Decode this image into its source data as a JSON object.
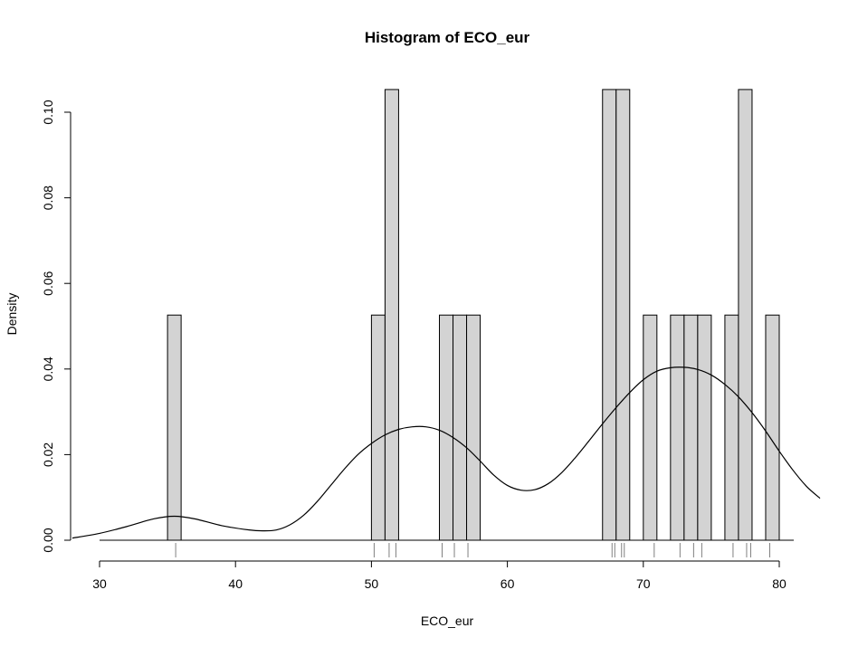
{
  "chart_data": {
    "type": "bar",
    "title": "Histogram of ECO_eur",
    "xlabel": "ECO_eur",
    "ylabel": "Density",
    "xlim": [
      30,
      80
    ],
    "ylim": [
      0,
      0.105
    ],
    "x_ticks": [
      30,
      40,
      50,
      60,
      70,
      80
    ],
    "x_tick_labels": [
      "30",
      "40",
      "50",
      "60",
      "70",
      "80"
    ],
    "y_ticks": [
      0,
      0.02,
      0.04,
      0.06,
      0.08,
      0.1
    ],
    "y_tick_labels": [
      "0.00",
      "0.02",
      "0.04",
      "0.06",
      "0.08",
      "0.10"
    ],
    "bin_width": 1,
    "bins": [
      {
        "x0": 35,
        "x1": 36,
        "density": 0.0526
      },
      {
        "x0": 50,
        "x1": 51,
        "density": 0.0526
      },
      {
        "x0": 51,
        "x1": 52,
        "density": 0.1053
      },
      {
        "x0": 55,
        "x1": 56,
        "density": 0.0526
      },
      {
        "x0": 56,
        "x1": 57,
        "density": 0.0526
      },
      {
        "x0": 57,
        "x1": 58,
        "density": 0.0526
      },
      {
        "x0": 67,
        "x1": 68,
        "density": 0.1053
      },
      {
        "x0": 68,
        "x1": 69,
        "density": 0.1053
      },
      {
        "x0": 70,
        "x1": 71,
        "density": 0.0526
      },
      {
        "x0": 72,
        "x1": 73,
        "density": 0.0526
      },
      {
        "x0": 73,
        "x1": 74,
        "density": 0.0526
      },
      {
        "x0": 74,
        "x1": 75,
        "density": 0.0526
      },
      {
        "x0": 76,
        "x1": 77,
        "density": 0.0526
      },
      {
        "x0": 77,
        "x1": 78,
        "density": 0.1053
      },
      {
        "x0": 79,
        "x1": 80,
        "density": 0.0526
      }
    ],
    "rug": [
      35.6,
      50.2,
      51.3,
      51.8,
      55.2,
      56.1,
      57.1,
      67.7,
      67.9,
      68.4,
      68.6,
      70.8,
      72.7,
      73.7,
      74.3,
      76.6,
      77.6,
      77.9,
      79.3
    ],
    "density_curve": [
      [
        28.0,
        0.0005
      ],
      [
        30.0,
        0.0016
      ],
      [
        32.0,
        0.0032
      ],
      [
        34.0,
        0.005
      ],
      [
        35.5,
        0.0056
      ],
      [
        37.0,
        0.005
      ],
      [
        39.0,
        0.0034
      ],
      [
        41.0,
        0.0024
      ],
      [
        42.0,
        0.0022
      ],
      [
        43.0,
        0.0024
      ],
      [
        44.0,
        0.0036
      ],
      [
        45.0,
        0.0058
      ],
      [
        46.0,
        0.009
      ],
      [
        47.0,
        0.0128
      ],
      [
        48.0,
        0.0166
      ],
      [
        49.0,
        0.02
      ],
      [
        50.0,
        0.0226
      ],
      [
        51.0,
        0.0246
      ],
      [
        52.0,
        0.0259
      ],
      [
        53.0,
        0.0265
      ],
      [
        54.0,
        0.0265
      ],
      [
        55.0,
        0.0257
      ],
      [
        56.0,
        0.024
      ],
      [
        57.0,
        0.0216
      ],
      [
        58.0,
        0.0185
      ],
      [
        59.0,
        0.0152
      ],
      [
        60.0,
        0.0128
      ],
      [
        61.0,
        0.0117
      ],
      [
        62.0,
        0.0118
      ],
      [
        63.0,
        0.0132
      ],
      [
        64.0,
        0.0158
      ],
      [
        65.0,
        0.0193
      ],
      [
        66.0,
        0.0232
      ],
      [
        67.0,
        0.0272
      ],
      [
        68.0,
        0.031
      ],
      [
        69.0,
        0.0345
      ],
      [
        70.0,
        0.0375
      ],
      [
        71.0,
        0.0395
      ],
      [
        72.0,
        0.0403
      ],
      [
        73.0,
        0.0404
      ],
      [
        74.0,
        0.0399
      ],
      [
        75.0,
        0.0386
      ],
      [
        76.0,
        0.0364
      ],
      [
        77.0,
        0.0335
      ],
      [
        78.0,
        0.0298
      ],
      [
        79.0,
        0.0255
      ],
      [
        80.0,
        0.0208
      ],
      [
        81.0,
        0.0164
      ],
      [
        82.0,
        0.0126
      ],
      [
        83.0,
        0.0098
      ]
    ],
    "colors": {
      "bar_fill": "#d3d3d3",
      "bar_stroke": "#000000",
      "curve": "#000000",
      "rug": "#808080",
      "axis": "#000000"
    },
    "grid": false,
    "legend": "none"
  }
}
